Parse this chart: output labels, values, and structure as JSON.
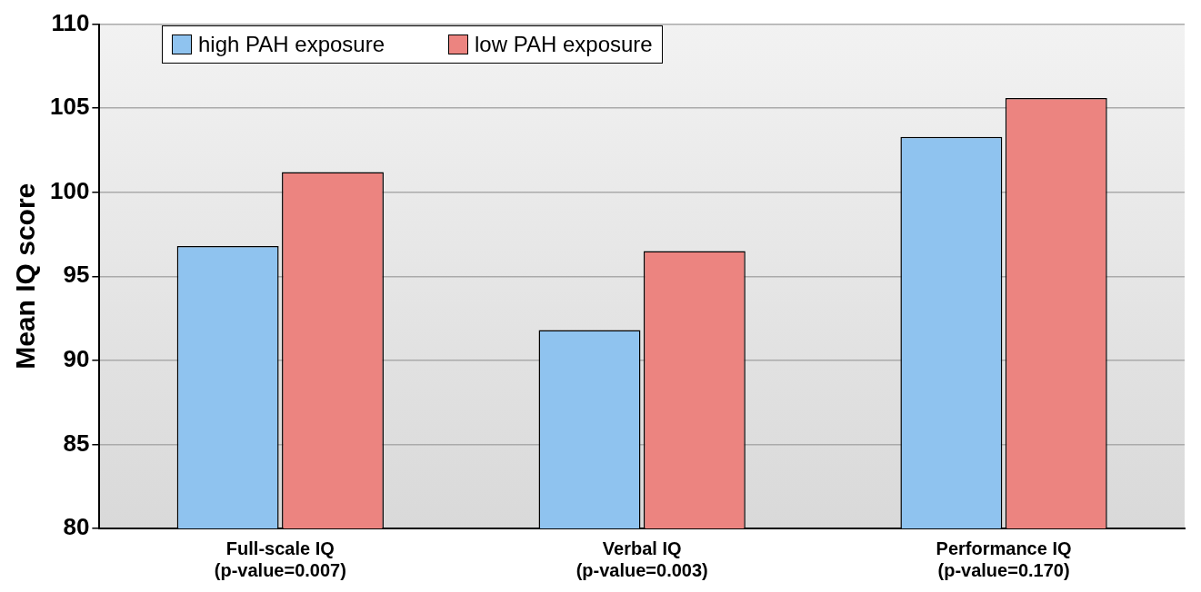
{
  "chart_data": {
    "type": "bar",
    "ylabel": "Mean IQ score",
    "categories": [
      "Full-scale IQ (p-value=0.007)",
      "Verbal IQ (p-value=0.003)",
      "Performance IQ (p-value=0.170)"
    ],
    "series": [
      {
        "name": "high PAH exposure",
        "color": "#8fc3ef",
        "values": [
          96.8,
          91.8,
          103.3
        ]
      },
      {
        "name": "low PAH exposure",
        "color": "#ec8480",
        "values": [
          101.2,
          96.5,
          105.6
        ]
      }
    ],
    "ylim": [
      80,
      110
    ],
    "yticks": [
      80,
      85,
      90,
      95,
      100,
      105,
      110
    ],
    "grid": "y",
    "legend": "top left"
  }
}
